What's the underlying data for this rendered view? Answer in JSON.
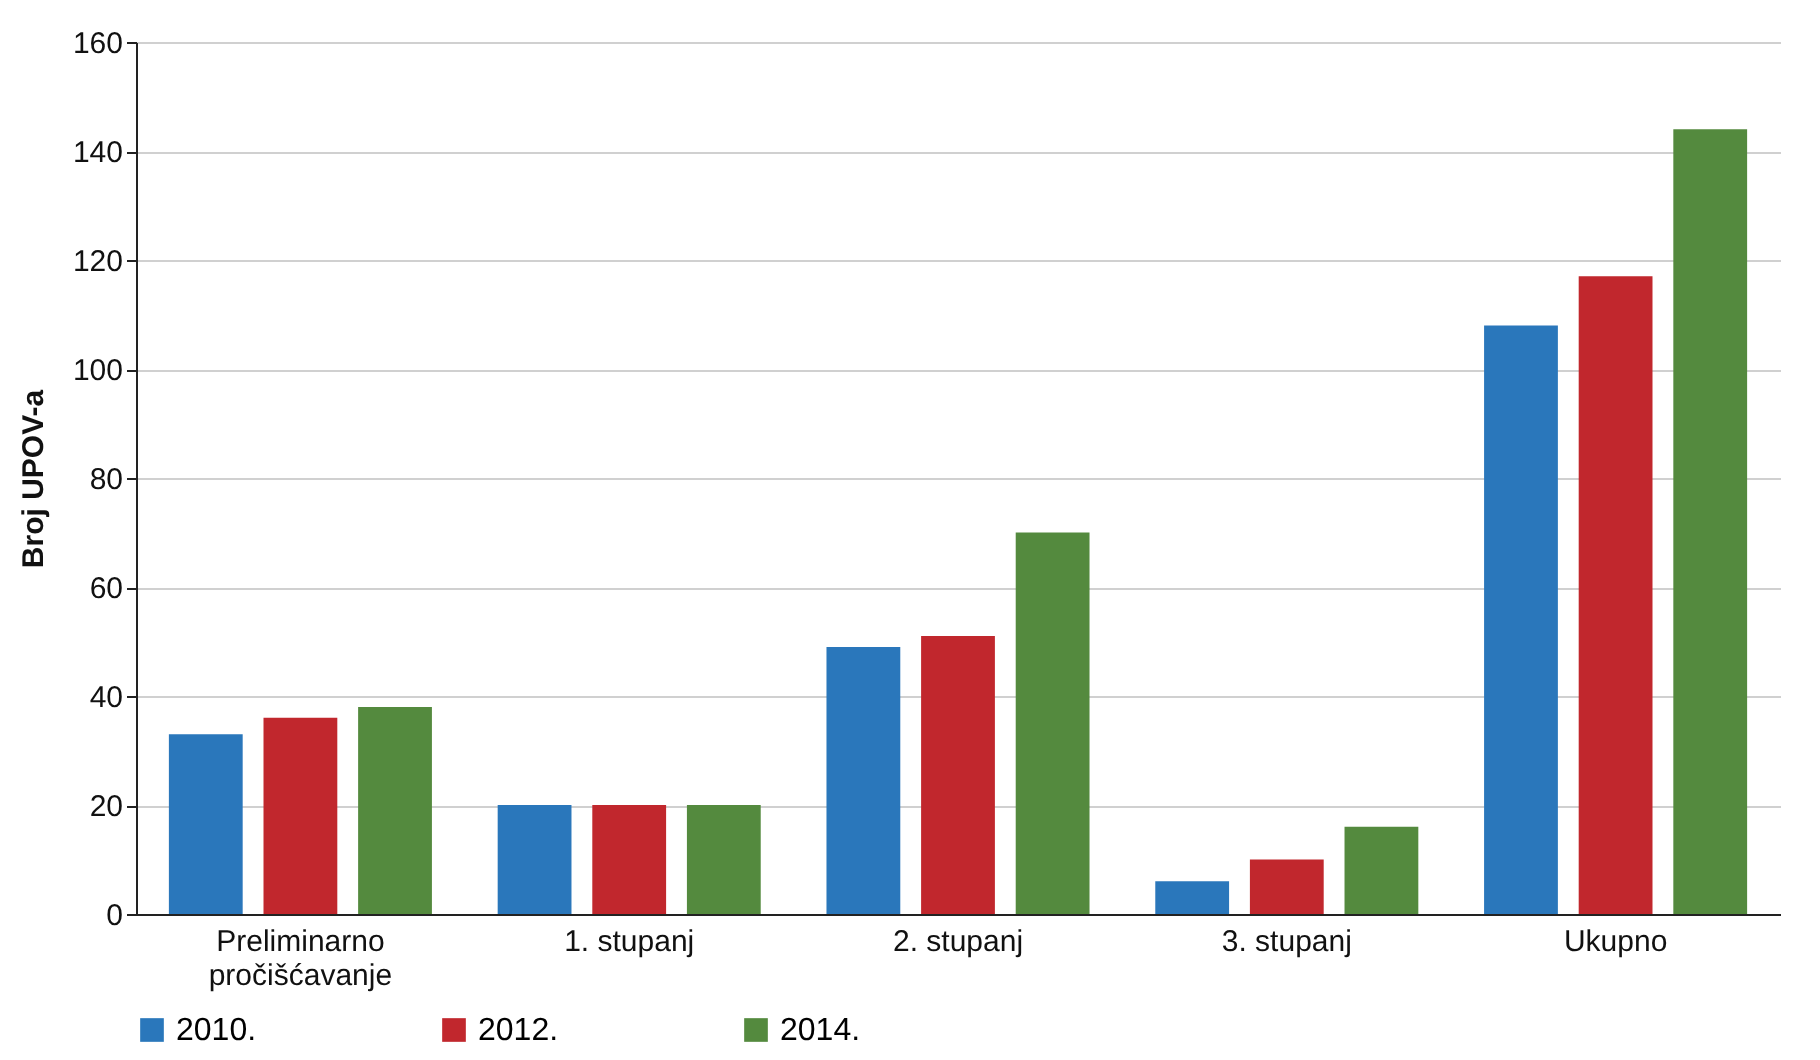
{
  "chart_data": {
    "type": "bar",
    "ylabel": "Broj UPOV-a",
    "categories": [
      "Preliminarno pročišćavanje",
      "1. stupanj",
      "2. stupanj",
      "3. stupanj",
      "Ukupno"
    ],
    "series": [
      {
        "name": "2010.",
        "color": "#2a77bb",
        "values": [
          33,
          20,
          49,
          6,
          108
        ]
      },
      {
        "name": "2012.",
        "color": "#c1272d",
        "values": [
          36,
          20,
          51,
          10,
          117
        ]
      },
      {
        "name": "2014.",
        "color": "#548a3e",
        "values": [
          38,
          20,
          70,
          16,
          144
        ]
      }
    ],
    "ylim": [
      0,
      160
    ],
    "yticks": [
      0,
      20,
      40,
      60,
      80,
      100,
      120,
      140,
      160
    ],
    "grid": "y",
    "legend": "bottom"
  }
}
